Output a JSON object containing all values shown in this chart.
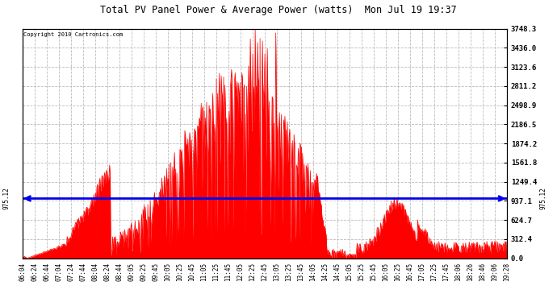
{
  "title": "Total PV Panel Power & Average Power (watts)  Mon Jul 19 19:37",
  "copyright": "Copyright 2010 Cartronics.com",
  "avg_power": 975.12,
  "y_max": 3748.3,
  "y_ticks": [
    0.0,
    312.4,
    624.7,
    937.1,
    1249.4,
    1561.8,
    1874.2,
    2186.5,
    2498.9,
    2811.2,
    3123.6,
    3436.0,
    3748.3
  ],
  "x_labels": [
    "06:04",
    "06:24",
    "06:44",
    "07:04",
    "07:24",
    "07:44",
    "08:04",
    "08:24",
    "08:44",
    "09:05",
    "09:25",
    "09:45",
    "10:05",
    "10:25",
    "10:45",
    "11:05",
    "11:25",
    "11:45",
    "12:05",
    "12:25",
    "12:45",
    "13:05",
    "13:25",
    "13:45",
    "14:05",
    "14:25",
    "14:45",
    "15:05",
    "15:25",
    "15:45",
    "16:05",
    "16:25",
    "16:45",
    "17:05",
    "17:25",
    "17:45",
    "18:06",
    "18:26",
    "18:46",
    "19:06",
    "19:28"
  ],
  "background_color": "#ffffff",
  "fill_color": "#ff0000",
  "avg_line_color": "#0000ee",
  "grid_color": "#bbbbbb",
  "title_color": "#000000",
  "border_color": "#000000",
  "avg_label": "975.12",
  "figwidth": 6.9,
  "figheight": 3.75,
  "dpi": 100
}
